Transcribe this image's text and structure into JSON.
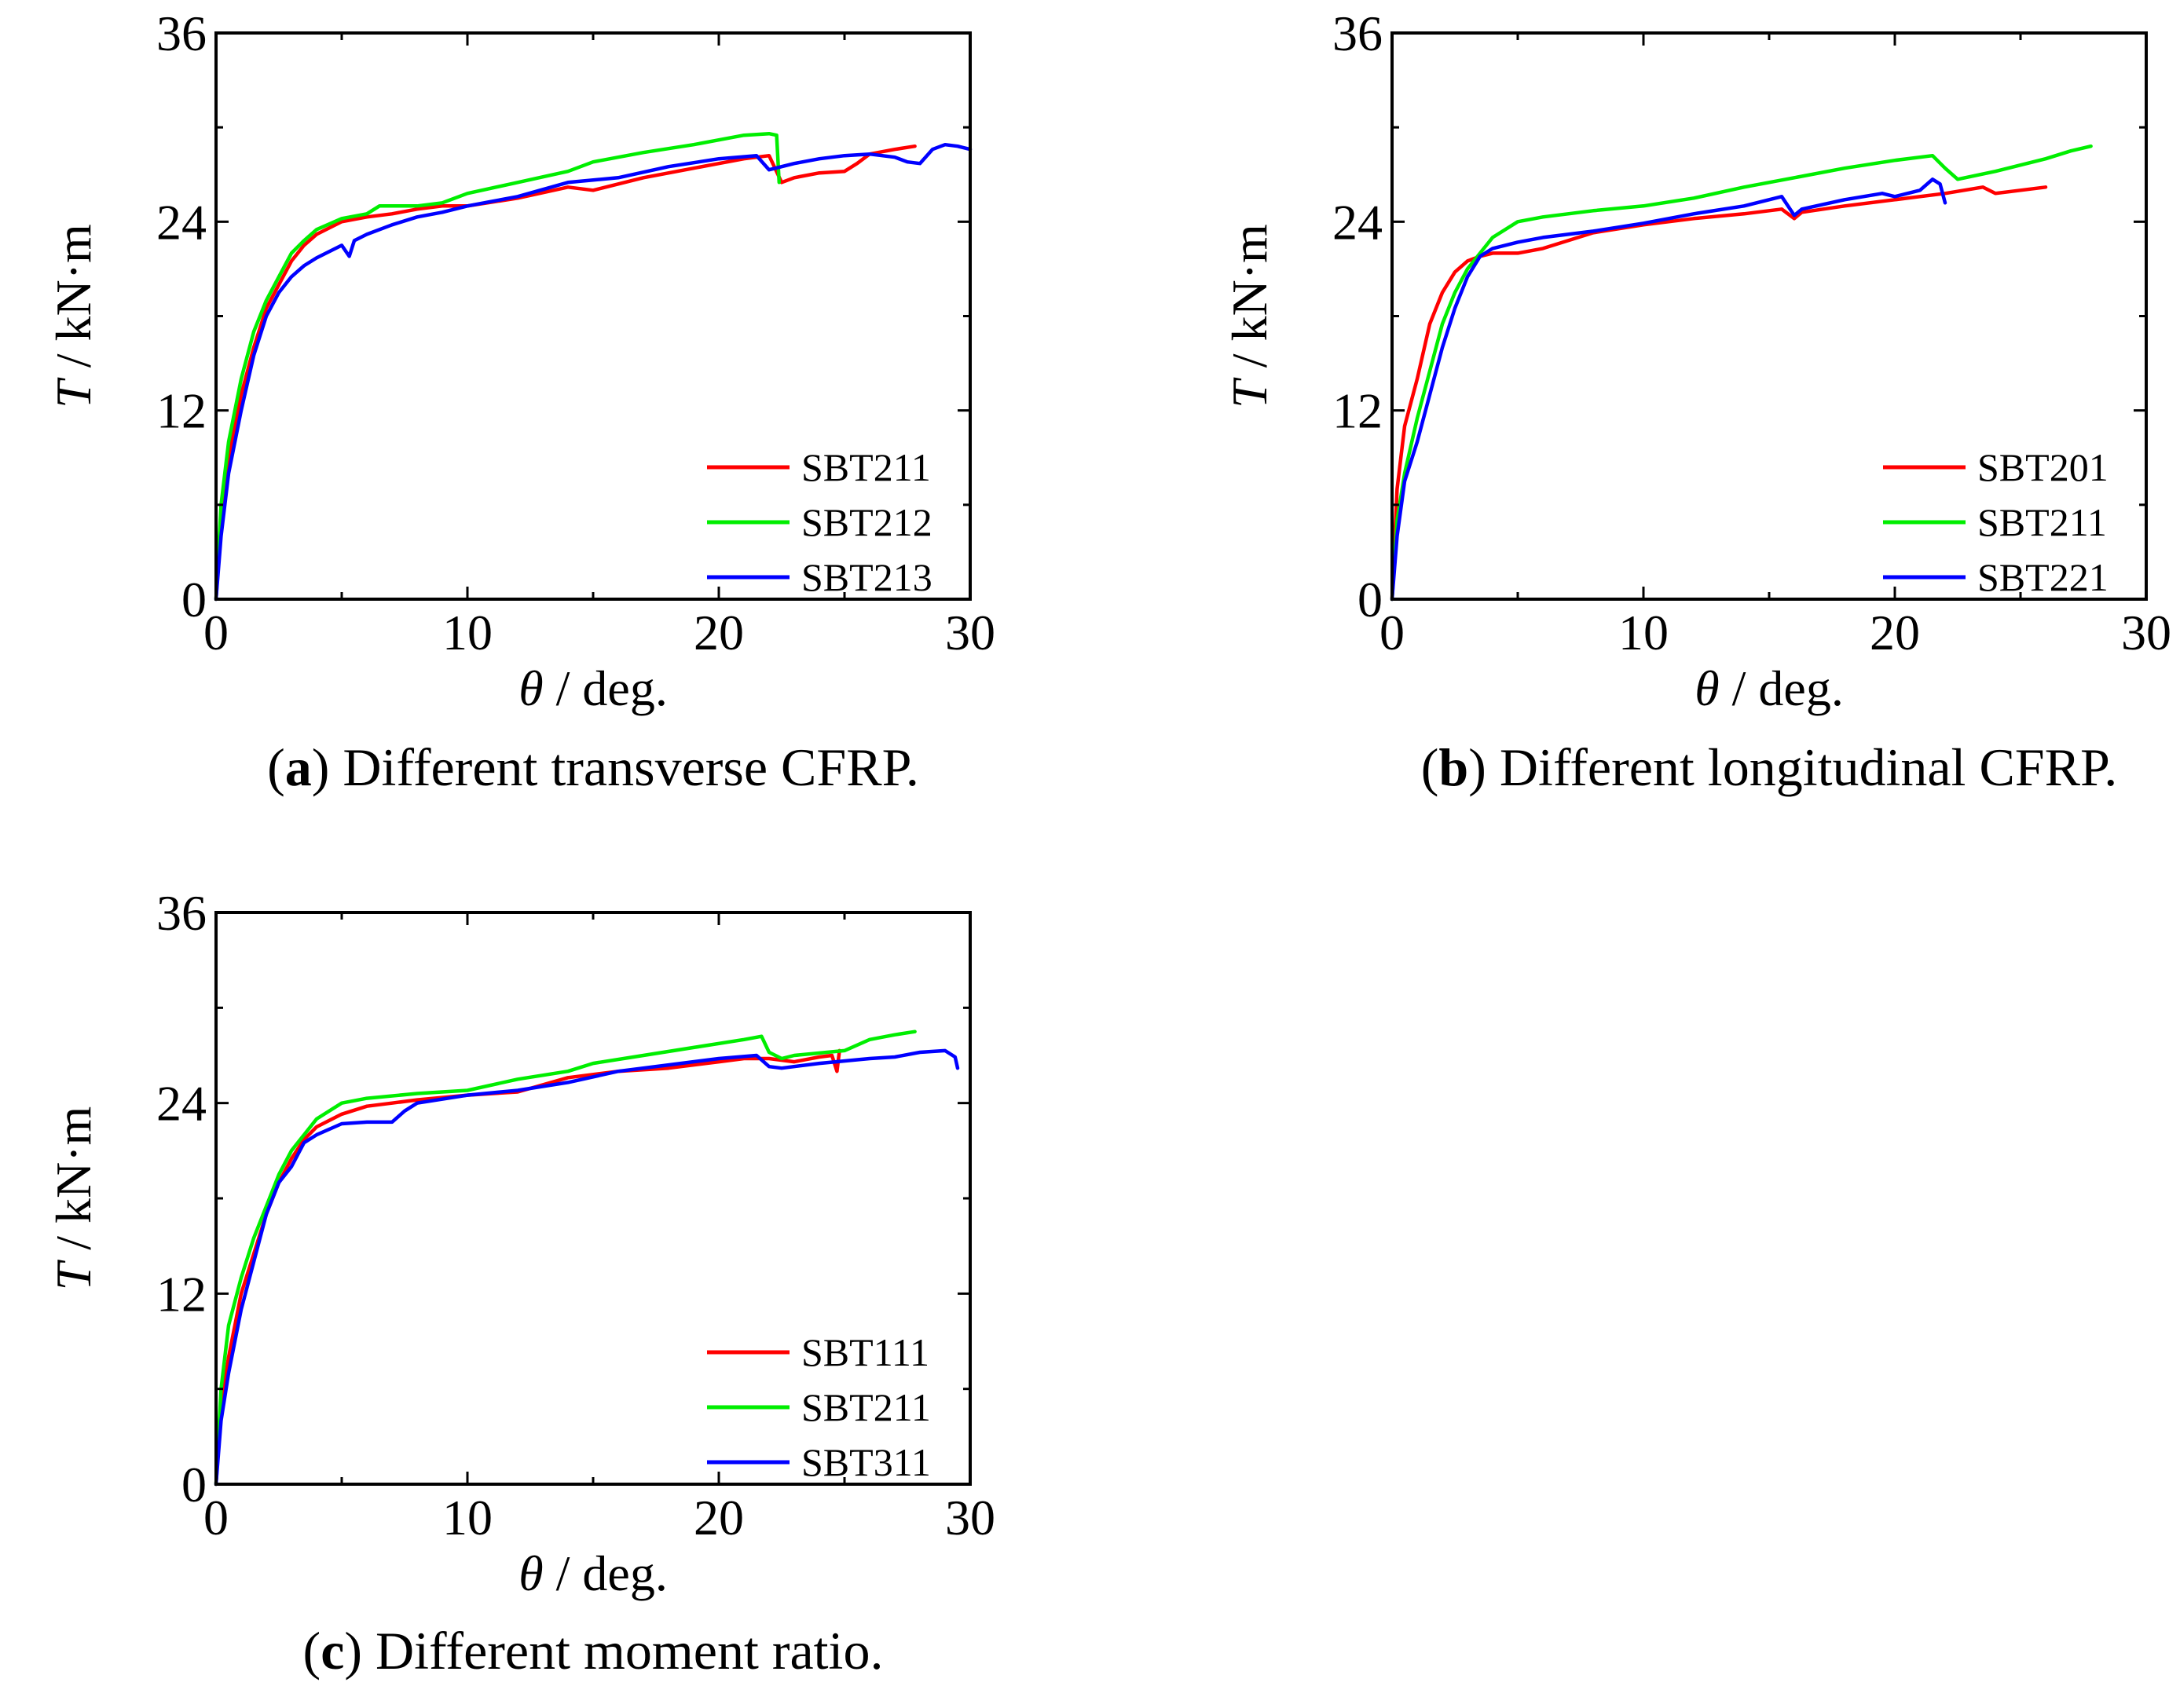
{
  "chart_data": [
    {
      "type": "line",
      "caption_letter": "a",
      "caption_text": "Different transverse CFRP.",
      "xlabel_symbol": "θ",
      "xlabel_unit": "/ deg.",
      "ylabel_symbol": "T",
      "ylabel_unit": "/ kN·m",
      "xlim": [
        0,
        30
      ],
      "ylim": [
        0,
        36
      ],
      "xticks": [
        "0",
        "10",
        "20",
        "30"
      ],
      "yticks": [
        "0",
        "12",
        "24",
        "36"
      ],
      "legend_position": "bottom-right",
      "series": [
        {
          "name": "SBT211",
          "color": "#ff0000",
          "x": [
            0,
            0.2,
            0.5,
            1.0,
            1.5,
            2.0,
            2.5,
            3.0,
            3.5,
            4.0,
            5.0,
            6.0,
            7.0,
            8.0,
            9.0,
            10.0,
            12.0,
            14.0,
            15.0,
            17.0,
            19.0,
            20.0,
            21.0,
            22.0,
            22.5,
            23.0,
            24.0,
            25.0,
            25.5,
            26.0,
            27.0,
            27.8
          ],
          "y": [
            0,
            5,
            9,
            13,
            16,
            18.5,
            20,
            21.5,
            22.5,
            23.2,
            24.0,
            24.3,
            24.5,
            24.8,
            25.0,
            25.0,
            25.5,
            26.2,
            26.0,
            26.8,
            27.4,
            27.7,
            28.0,
            28.2,
            26.5,
            26.8,
            27.1,
            27.2,
            27.7,
            28.3,
            28.6,
            28.8
          ]
        },
        {
          "name": "SBT212",
          "color": "#00ee00",
          "x": [
            0,
            0.2,
            0.5,
            1.0,
            1.5,
            2.0,
            2.5,
            3.0,
            3.5,
            4.0,
            5.0,
            6.0,
            6.5,
            8.0,
            9.0,
            10.0,
            12.0,
            14.0,
            15.0,
            17.0,
            19.0,
            20.0,
            21.0,
            22.0,
            22.3,
            22.4
          ],
          "y": [
            0,
            6,
            10,
            14,
            17,
            19,
            20.5,
            22,
            22.8,
            23.5,
            24.2,
            24.5,
            25.0,
            25.0,
            25.2,
            25.8,
            26.5,
            27.2,
            27.8,
            28.4,
            28.9,
            29.2,
            29.5,
            29.6,
            29.5,
            26.5
          ]
        },
        {
          "name": "SBT213",
          "color": "#0000ff",
          "x": [
            0,
            0.2,
            0.5,
            1.0,
            1.5,
            2.0,
            2.5,
            3.0,
            3.5,
            4.0,
            5.0,
            5.3,
            5.5,
            6.0,
            7.0,
            8.0,
            9.0,
            10.0,
            12.0,
            14.0,
            16.0,
            18.0,
            20.0,
            21.5,
            22.0,
            23.0,
            24.0,
            25.0,
            26.0,
            27.0,
            27.5,
            28.0,
            28.5,
            29.0,
            29.5,
            30.0
          ],
          "y": [
            0,
            4,
            8,
            12,
            15.5,
            18,
            19.5,
            20.5,
            21.2,
            21.7,
            22.5,
            21.8,
            22.8,
            23.2,
            23.8,
            24.3,
            24.6,
            25.0,
            25.6,
            26.5,
            26.8,
            27.5,
            28.0,
            28.2,
            27.3,
            27.7,
            28.0,
            28.2,
            28.3,
            28.1,
            27.8,
            27.7,
            28.6,
            28.9,
            28.8,
            28.6
          ]
        }
      ]
    },
    {
      "type": "line",
      "caption_letter": "b",
      "caption_text": "Different longitudinal CFRP.",
      "xlabel_symbol": "θ",
      "xlabel_unit": "/ deg.",
      "ylabel_symbol": "T",
      "ylabel_unit": "/ kN·m",
      "xlim": [
        0,
        30
      ],
      "ylim": [
        0,
        36
      ],
      "xticks": [
        "0",
        "10",
        "20",
        "30"
      ],
      "yticks": [
        "0",
        "12",
        "24",
        "36"
      ],
      "legend_position": "bottom-right",
      "series": [
        {
          "name": "SBT201",
          "color": "#ff0000",
          "x": [
            0,
            0.2,
            0.5,
            1.0,
            1.5,
            2.0,
            2.5,
            3.0,
            3.5,
            4.0,
            5.0,
            6.0,
            7.0,
            8.0,
            10.0,
            12.0,
            14.0,
            15.5,
            16.0,
            16.3,
            18.0,
            20.0,
            22.0,
            23.5,
            24.0,
            25.0,
            26.0
          ],
          "y": [
            0,
            7,
            11,
            14,
            17.5,
            19.5,
            20.8,
            21.5,
            21.8,
            22.0,
            22.0,
            22.3,
            22.8,
            23.3,
            23.8,
            24.2,
            24.5,
            24.8,
            24.2,
            24.6,
            25.0,
            25.4,
            25.8,
            26.2,
            25.8,
            26.0,
            26.2
          ]
        },
        {
          "name": "SBT211",
          "color": "#00ee00",
          "x": [
            0,
            0.2,
            0.5,
            1.0,
            1.5,
            2.0,
            2.5,
            3.0,
            3.5,
            4.0,
            5.0,
            6.0,
            8.0,
            10.0,
            12.0,
            14.0,
            16.0,
            18.0,
            20.0,
            21.5,
            22.0,
            22.5,
            24.0,
            25.0,
            26.0,
            27.0,
            27.8
          ],
          "y": [
            0,
            5,
            8,
            11.5,
            14.5,
            17.5,
            19.5,
            21,
            22.0,
            23.0,
            24.0,
            24.3,
            24.7,
            25.0,
            25.5,
            26.2,
            26.8,
            27.4,
            27.9,
            28.2,
            27.4,
            26.7,
            27.2,
            27.6,
            28.0,
            28.5,
            28.8
          ]
        },
        {
          "name": "SBT221",
          "color": "#0000ff",
          "x": [
            0,
            0.2,
            0.5,
            1.0,
            1.5,
            2.0,
            2.5,
            3.0,
            3.5,
            4.0,
            5.0,
            6.0,
            8.0,
            10.0,
            12.0,
            14.0,
            15.5,
            16.0,
            16.3,
            18.0,
            19.5,
            20.0,
            21.0,
            21.5,
            21.8,
            22.0
          ],
          "y": [
            0,
            4,
            7.5,
            10,
            13,
            16,
            18.5,
            20.5,
            21.8,
            22.3,
            22.7,
            23.0,
            23.4,
            23.9,
            24.5,
            25.0,
            25.6,
            24.4,
            24.8,
            25.4,
            25.8,
            25.6,
            26.0,
            26.7,
            26.4,
            25.2
          ]
        }
      ]
    },
    {
      "type": "line",
      "caption_letter": "c",
      "caption_text": "Different moment ratio.",
      "xlabel_symbol": "θ",
      "xlabel_unit": "/ deg.",
      "ylabel_symbol": "T",
      "ylabel_unit": "/ kN·m",
      "xlim": [
        0,
        30
      ],
      "ylim": [
        0,
        36
      ],
      "xticks": [
        "0",
        "10",
        "20",
        "30"
      ],
      "yticks": [
        "0",
        "12",
        "24",
        "36"
      ],
      "legend_position": "bottom-right",
      "series": [
        {
          "name": "SBT111",
          "color": "#ff0000",
          "x": [
            0,
            0.2,
            0.5,
            1.0,
            1.5,
            2.0,
            2.5,
            3.0,
            3.5,
            4.0,
            5.0,
            6.0,
            7.0,
            8.0,
            10.0,
            12.0,
            14.0,
            16.0,
            18.0,
            20.0,
            21.0,
            22.0,
            23.0,
            24.0,
            24.5,
            24.7,
            24.8
          ],
          "y": [
            0,
            5,
            8,
            12,
            14.5,
            17,
            19,
            20.5,
            21.7,
            22.5,
            23.3,
            23.8,
            24.0,
            24.2,
            24.5,
            24.7,
            25.6,
            26.0,
            26.2,
            26.6,
            26.8,
            26.8,
            26.6,
            26.9,
            27.0,
            26.0,
            27.3
          ]
        },
        {
          "name": "SBT211",
          "color": "#00ee00",
          "x": [
            0,
            0.2,
            0.5,
            1.0,
            1.5,
            2.0,
            2.5,
            3.0,
            3.5,
            4.0,
            5.0,
            6.0,
            8.0,
            10.0,
            12.0,
            14.0,
            15.0,
            17.0,
            19.0,
            21.0,
            21.7,
            22.0,
            22.5,
            23.0,
            25.0,
            26.0,
            27.0,
            27.8
          ],
          "y": [
            0,
            6,
            10,
            13,
            15.5,
            17.5,
            19.5,
            21,
            22.0,
            23.0,
            24.0,
            24.3,
            24.6,
            24.8,
            25.5,
            26.0,
            26.5,
            27.0,
            27.5,
            28.0,
            28.2,
            27.2,
            26.8,
            27.0,
            27.3,
            28.0,
            28.3,
            28.5
          ]
        },
        {
          "name": "SBT311",
          "color": "#0000ff",
          "x": [
            0,
            0.2,
            0.5,
            1.0,
            1.5,
            2.0,
            2.5,
            3.0,
            3.5,
            4.0,
            5.0,
            6.0,
            7.0,
            7.5,
            8.0,
            10.0,
            12.0,
            14.0,
            16.0,
            18.0,
            20.0,
            21.5,
            22.0,
            22.5,
            24.0,
            26.0,
            27.0,
            28.0,
            29.0,
            29.4,
            29.5
          ],
          "y": [
            0,
            4,
            7,
            11,
            14,
            17,
            19,
            20,
            21.5,
            22.0,
            22.7,
            22.8,
            22.8,
            23.5,
            24.0,
            24.5,
            24.8,
            25.3,
            26.0,
            26.4,
            26.8,
            27.0,
            26.3,
            26.2,
            26.5,
            26.8,
            26.9,
            27.2,
            27.3,
            26.9,
            26.2
          ]
        }
      ]
    }
  ]
}
